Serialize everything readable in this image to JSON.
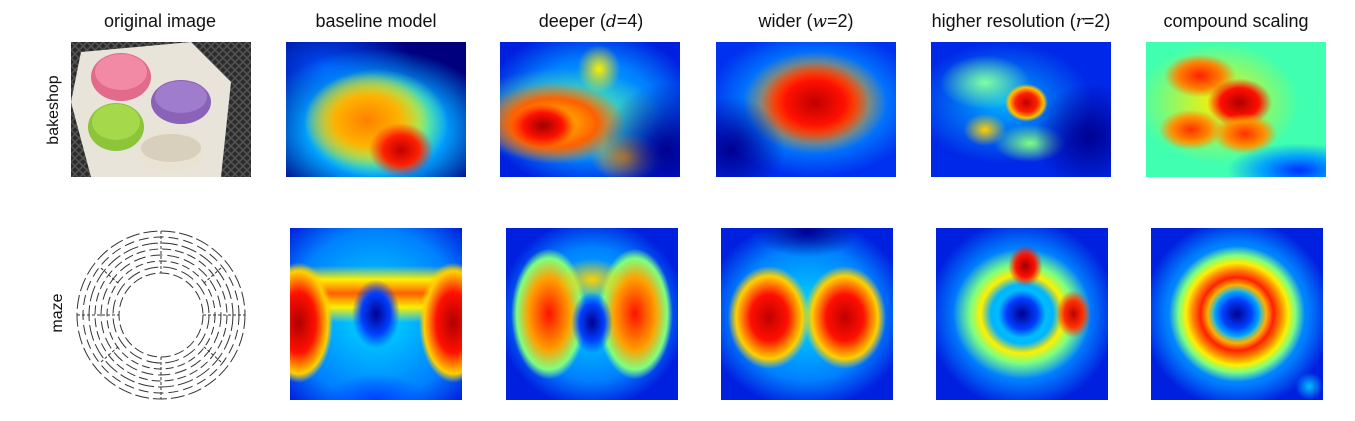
{
  "columns": {
    "original": "original image",
    "baseline": "baseline model",
    "deeper": {
      "prefix": "deeper (",
      "var": "d",
      "suffix": "=4)"
    },
    "wider": {
      "prefix": "wider (",
      "var": "w",
      "suffix": "=2)"
    },
    "higher_res": {
      "prefix": "higher resolution (",
      "var": "r",
      "suffix": "=2)"
    },
    "compound": "compound scaling"
  },
  "rows": {
    "bakeshop": "bakeshop",
    "maze": "maze"
  },
  "colors": {
    "jet_dark_blue": "#00008f",
    "jet_blue": "#0050ff",
    "jet_cyan": "#00e0ff",
    "jet_green": "#7fff7f",
    "jet_yellow": "#ffef00",
    "jet_red": "#ff1000",
    "jet_dark_red": "#a00000"
  }
}
